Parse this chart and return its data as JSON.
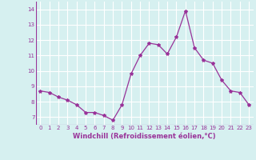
{
  "x": [
    0,
    1,
    2,
    3,
    4,
    5,
    6,
    7,
    8,
    9,
    10,
    11,
    12,
    13,
    14,
    15,
    16,
    17,
    18,
    19,
    20,
    21,
    22,
    23
  ],
  "y": [
    8.7,
    8.6,
    8.3,
    8.1,
    7.8,
    7.3,
    7.3,
    7.1,
    6.8,
    7.8,
    9.8,
    11.0,
    11.8,
    11.7,
    11.1,
    12.2,
    13.9,
    11.5,
    10.7,
    10.5,
    9.4,
    8.7,
    8.6,
    7.8
  ],
  "line_color": "#993399",
  "marker": "*",
  "marker_size": 3,
  "bg_color": "#d6f0f0",
  "grid_color": "#b0dada",
  "xlabel": "Windchill (Refroidissement éolien,°C)",
  "xlabel_color": "#993399",
  "tick_color": "#993399",
  "ylim": [
    6.5,
    14.5
  ],
  "yticks": [
    7,
    8,
    9,
    10,
    11,
    12,
    13,
    14
  ],
  "xticks": [
    0,
    1,
    2,
    3,
    4,
    5,
    6,
    7,
    8,
    9,
    10,
    11,
    12,
    13,
    14,
    15,
    16,
    17,
    18,
    19,
    20,
    21,
    22,
    23
  ],
  "xlim": [
    -0.5,
    23.5
  ]
}
